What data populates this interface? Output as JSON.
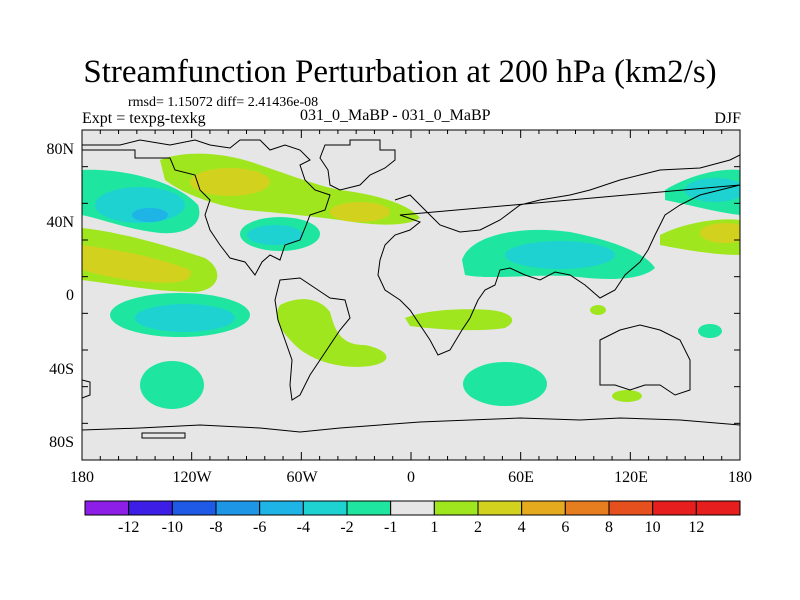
{
  "header": {
    "title": "Streamfunction Perturbation at 200 hPa (km2/s)",
    "stats": "rmsd= 1.15072 diff= 2.41436e-08",
    "expt": "Expt = texpg-texkg",
    "runs": "031_0_MaBP - 031_0_MaBP",
    "season": "DJF"
  },
  "axes": {
    "x_ticks": [
      "180",
      "120W",
      "60W",
      "0",
      "60E",
      "120E",
      "180"
    ],
    "y_ticks": [
      "80N",
      "40N",
      "0",
      "40S",
      "80S"
    ]
  },
  "colorbar": {
    "labels": [
      "-12",
      "-10",
      "-8",
      "-6",
      "-4",
      "-2",
      "-1",
      "1",
      "2",
      "4",
      "6",
      "8",
      "10",
      "12"
    ],
    "colors": [
      "#8c1ee8",
      "#3c1ee6",
      "#1e5ae6",
      "#1e96e6",
      "#1eb4e6",
      "#1ed2d2",
      "#1ee6a0",
      "#e6e6e6",
      "#a0e61e",
      "#d2d21e",
      "#e6aa1e",
      "#e67d1e",
      "#e6501e",
      "#e61e1e",
      "#e61e1e"
    ]
  },
  "colors": {
    "background": "#e6e6e6",
    "teal": "#1ed2d2",
    "green": "#1ee6a0",
    "lime": "#a0e61e",
    "olive": "#d2d21e"
  }
}
